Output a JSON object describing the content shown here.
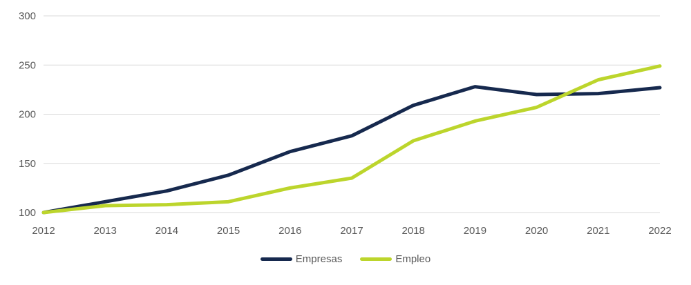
{
  "chart_data": {
    "type": "line",
    "x": [
      2012,
      2013,
      2014,
      2015,
      2016,
      2017,
      2018,
      2019,
      2020,
      2021,
      2022
    ],
    "series": [
      {
        "name": "Empresas",
        "color": "#16294E",
        "values": [
          100,
          111,
          122,
          138,
          162,
          178,
          209,
          228,
          220,
          221,
          227
        ]
      },
      {
        "name": "Empleo",
        "color": "#BCD52C",
        "values": [
          100,
          107,
          108,
          111,
          125,
          135,
          173,
          193,
          207,
          235,
          249
        ]
      }
    ],
    "title": "",
    "xlabel": "",
    "ylabel": "",
    "ylim": [
      100,
      300
    ],
    "yticks": [
      100,
      150,
      200,
      250,
      300
    ],
    "grid": "horizontal",
    "legend_position": "bottom-center"
  },
  "style": {
    "grid_color": "#D9D9D9",
    "tick_text_color": "#595959",
    "background_color": "#FFFFFF",
    "line_width": 5
  }
}
